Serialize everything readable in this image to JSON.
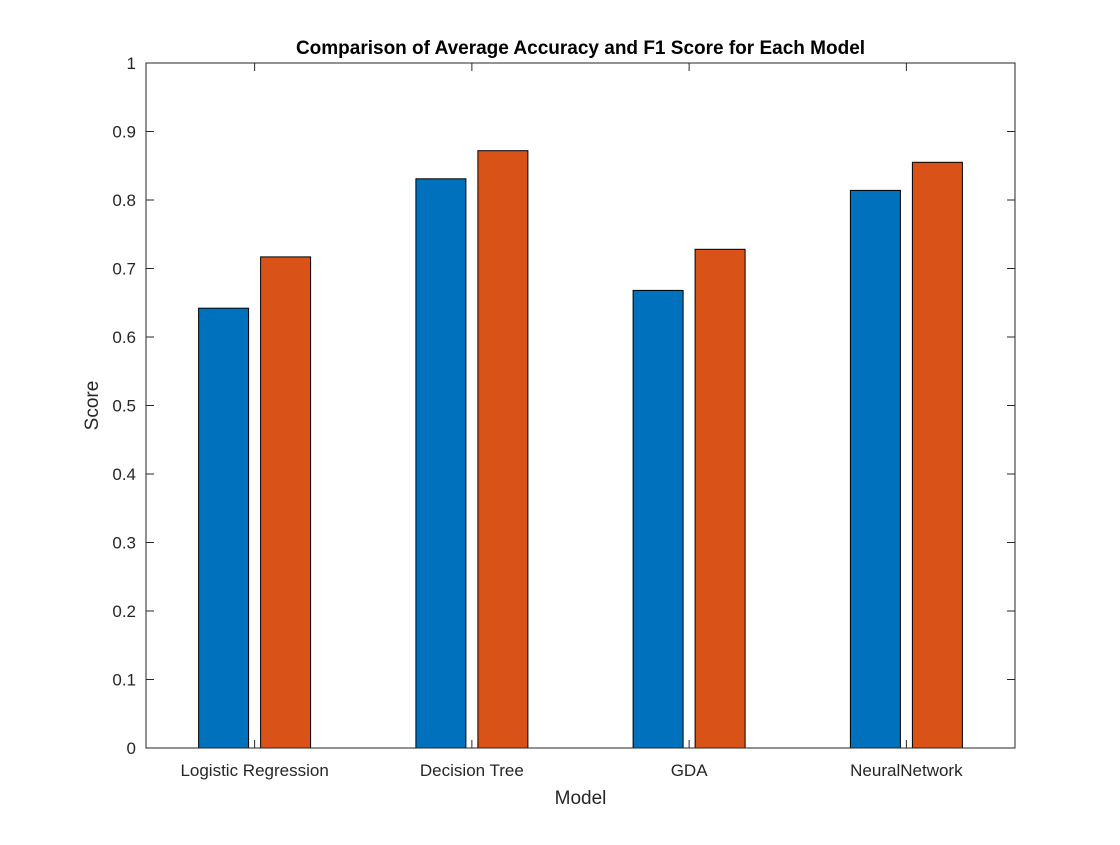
{
  "chart_data": {
    "type": "bar",
    "title": "Comparison of Average Accuracy and F1 Score for Each Model",
    "xlabel": "Model",
    "ylabel": "Score",
    "ylim": [
      0,
      1
    ],
    "yticks": [
      "0",
      "0.1",
      "0.2",
      "0.3",
      "0.4",
      "0.5",
      "0.6",
      "0.7",
      "0.8",
      "0.9",
      "1"
    ],
    "categories": [
      "Logistic Regression",
      "Decision Tree",
      "GDA",
      "NeuralNetwork"
    ],
    "series": [
      {
        "values": [
          0.642,
          0.831,
          0.668,
          0.814
        ],
        "color": "#0072BD"
      },
      {
        "values": [
          0.717,
          0.872,
          0.728,
          0.855
        ],
        "color": "#D95319"
      }
    ],
    "grid": false,
    "legend": "none"
  }
}
